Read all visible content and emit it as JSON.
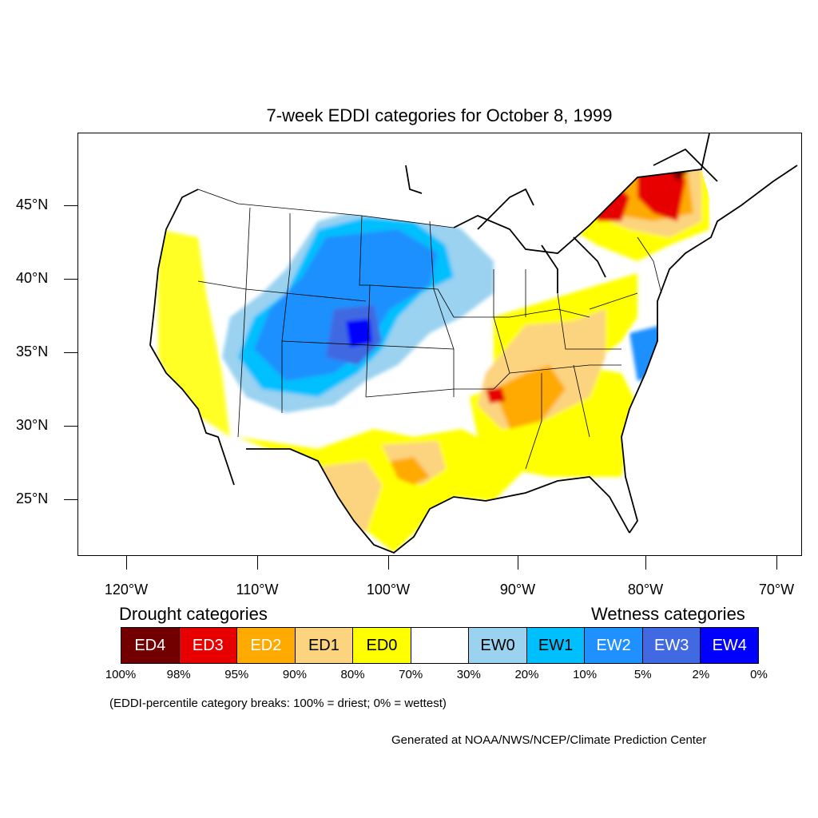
{
  "title": "7-week EDDI categories for October 8, 1999",
  "map": {
    "latitude_labels": [
      "45°N",
      "40°N",
      "35°N",
      "30°N",
      "25°N"
    ],
    "longitude_labels": [
      "120°W",
      "110°W",
      "100°W",
      "90°W",
      "80°W",
      "70°W"
    ]
  },
  "legend": {
    "drought_heading": "Drought categories",
    "wetness_heading": "Wetness categories",
    "categories": [
      {
        "label": "ED4",
        "color": "#730000",
        "text_color": "#ffffff"
      },
      {
        "label": "ED3",
        "color": "#e60000",
        "text_color": "#ffffff"
      },
      {
        "label": "ED2",
        "color": "#ffaa00",
        "text_color": "#ffffff"
      },
      {
        "label": "ED1",
        "color": "#fcd37f",
        "text_color": "#000000"
      },
      {
        "label": "ED0",
        "color": "#ffff00",
        "text_color": "#000000"
      },
      {
        "label": "",
        "color": "#ffffff",
        "text_color": "#000000"
      },
      {
        "label": "EW0",
        "color": "#9ad2f0",
        "text_color": "#000000"
      },
      {
        "label": "EW1",
        "color": "#00bfff",
        "text_color": "#000000"
      },
      {
        "label": "EW2",
        "color": "#1e90ff",
        "text_color": "#ffffff"
      },
      {
        "label": "EW3",
        "color": "#4169e1",
        "text_color": "#ffffff"
      },
      {
        "label": "EW4",
        "color": "#0000ff",
        "text_color": "#ffffff"
      }
    ],
    "breaks": [
      "100%",
      "98%",
      "95%",
      "90%",
      "80%",
      "70%",
      "30%",
      "20%",
      "10%",
      "5%",
      "2%",
      "0%"
    ]
  },
  "note": "(EDDI-percentile category breaks: 100% = driest; 0% = wettest)",
  "credit": "Generated at NOAA/NWS/NCEP/Climate Prediction Center"
}
